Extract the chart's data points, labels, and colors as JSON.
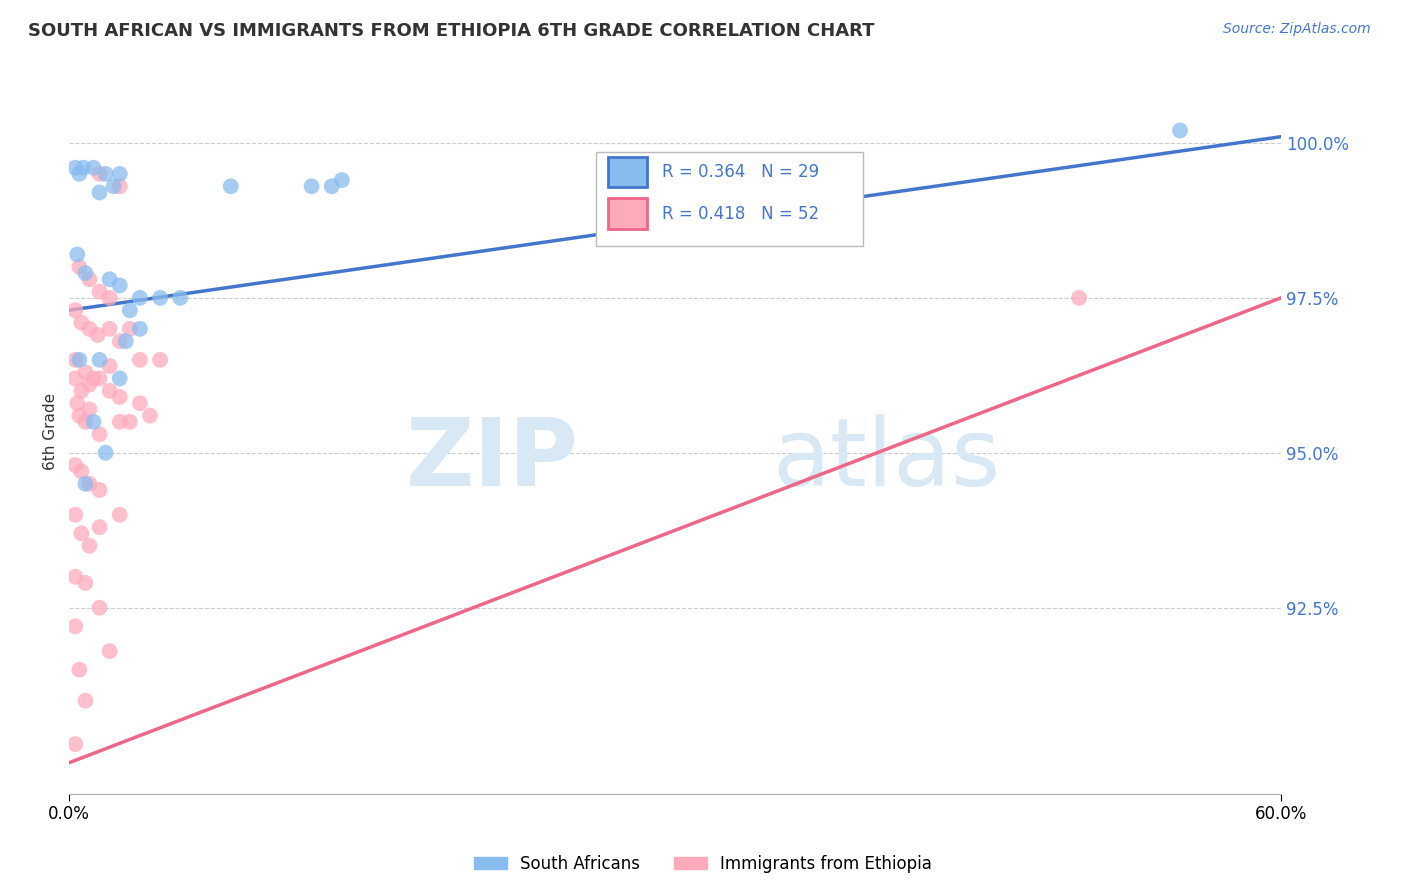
{
  "title": "SOUTH AFRICAN VS IMMIGRANTS FROM ETHIOPIA 6TH GRADE CORRELATION CHART",
  "source_text": "Source: ZipAtlas.com",
  "ylabel": "6th Grade",
  "x_min": 0.0,
  "x_max": 60.0,
  "y_min": 89.5,
  "y_max": 101.2,
  "legend_r_blue": "R = 0.364",
  "legend_n_blue": "N = 29",
  "legend_r_pink": "R = 0.418",
  "legend_n_pink": "N = 52",
  "blue_color": "#88BBEE",
  "pink_color": "#FFAABB",
  "blue_line_color": "#4477CC",
  "pink_line_color": "#EE6688",
  "blue_scatter": [
    [
      0.3,
      99.6
    ],
    [
      0.7,
      99.6
    ],
    [
      1.2,
      99.6
    ],
    [
      1.8,
      99.5
    ],
    [
      2.5,
      99.5
    ],
    [
      1.5,
      99.2
    ],
    [
      2.2,
      99.3
    ],
    [
      0.5,
      99.5
    ],
    [
      8.0,
      99.3
    ],
    [
      12.0,
      99.3
    ],
    [
      13.0,
      99.3
    ],
    [
      13.5,
      99.4
    ],
    [
      0.4,
      98.2
    ],
    [
      0.8,
      97.9
    ],
    [
      2.5,
      97.7
    ],
    [
      3.5,
      97.5
    ],
    [
      4.5,
      97.5
    ],
    [
      5.5,
      97.5
    ],
    [
      2.0,
      97.8
    ],
    [
      3.0,
      97.3
    ],
    [
      2.8,
      96.8
    ],
    [
      3.5,
      97.0
    ],
    [
      0.5,
      96.5
    ],
    [
      1.2,
      95.5
    ],
    [
      1.5,
      96.5
    ],
    [
      2.5,
      96.2
    ],
    [
      0.8,
      94.5
    ],
    [
      1.8,
      95.0
    ],
    [
      55.0,
      100.2
    ]
  ],
  "pink_scatter": [
    [
      1.5,
      99.5
    ],
    [
      2.5,
      99.3
    ],
    [
      0.5,
      98.0
    ],
    [
      1.0,
      97.8
    ],
    [
      1.5,
      97.6
    ],
    [
      2.0,
      97.5
    ],
    [
      0.3,
      97.3
    ],
    [
      0.6,
      97.1
    ],
    [
      1.0,
      97.0
    ],
    [
      1.4,
      96.9
    ],
    [
      2.0,
      97.0
    ],
    [
      2.5,
      96.8
    ],
    [
      3.0,
      97.0
    ],
    [
      3.5,
      96.5
    ],
    [
      4.5,
      96.5
    ],
    [
      0.3,
      96.2
    ],
    [
      0.6,
      96.0
    ],
    [
      1.0,
      96.1
    ],
    [
      1.5,
      96.2
    ],
    [
      2.0,
      96.0
    ],
    [
      2.5,
      95.9
    ],
    [
      0.5,
      95.6
    ],
    [
      0.8,
      95.5
    ],
    [
      1.5,
      95.3
    ],
    [
      2.5,
      95.5
    ],
    [
      3.0,
      95.5
    ],
    [
      3.5,
      95.8
    ],
    [
      4.0,
      95.6
    ],
    [
      0.3,
      94.8
    ],
    [
      0.6,
      94.7
    ],
    [
      1.0,
      94.5
    ],
    [
      1.5,
      94.4
    ],
    [
      0.3,
      96.5
    ],
    [
      0.8,
      96.3
    ],
    [
      1.2,
      96.2
    ],
    [
      2.0,
      96.4
    ],
    [
      0.4,
      95.8
    ],
    [
      1.0,
      95.7
    ],
    [
      0.3,
      94.0
    ],
    [
      0.6,
      93.7
    ],
    [
      1.0,
      93.5
    ],
    [
      0.3,
      93.0
    ],
    [
      0.8,
      92.9
    ],
    [
      0.3,
      92.2
    ],
    [
      1.5,
      93.8
    ],
    [
      2.5,
      94.0
    ],
    [
      1.5,
      92.5
    ],
    [
      2.0,
      91.8
    ],
    [
      0.5,
      91.5
    ],
    [
      0.8,
      91.0
    ],
    [
      0.3,
      90.3
    ],
    [
      50.0,
      97.5
    ]
  ],
  "blue_trend": [
    0.0,
    97.3,
    60.0,
    100.1
  ],
  "pink_trend": [
    0.0,
    90.0,
    60.0,
    97.5
  ]
}
